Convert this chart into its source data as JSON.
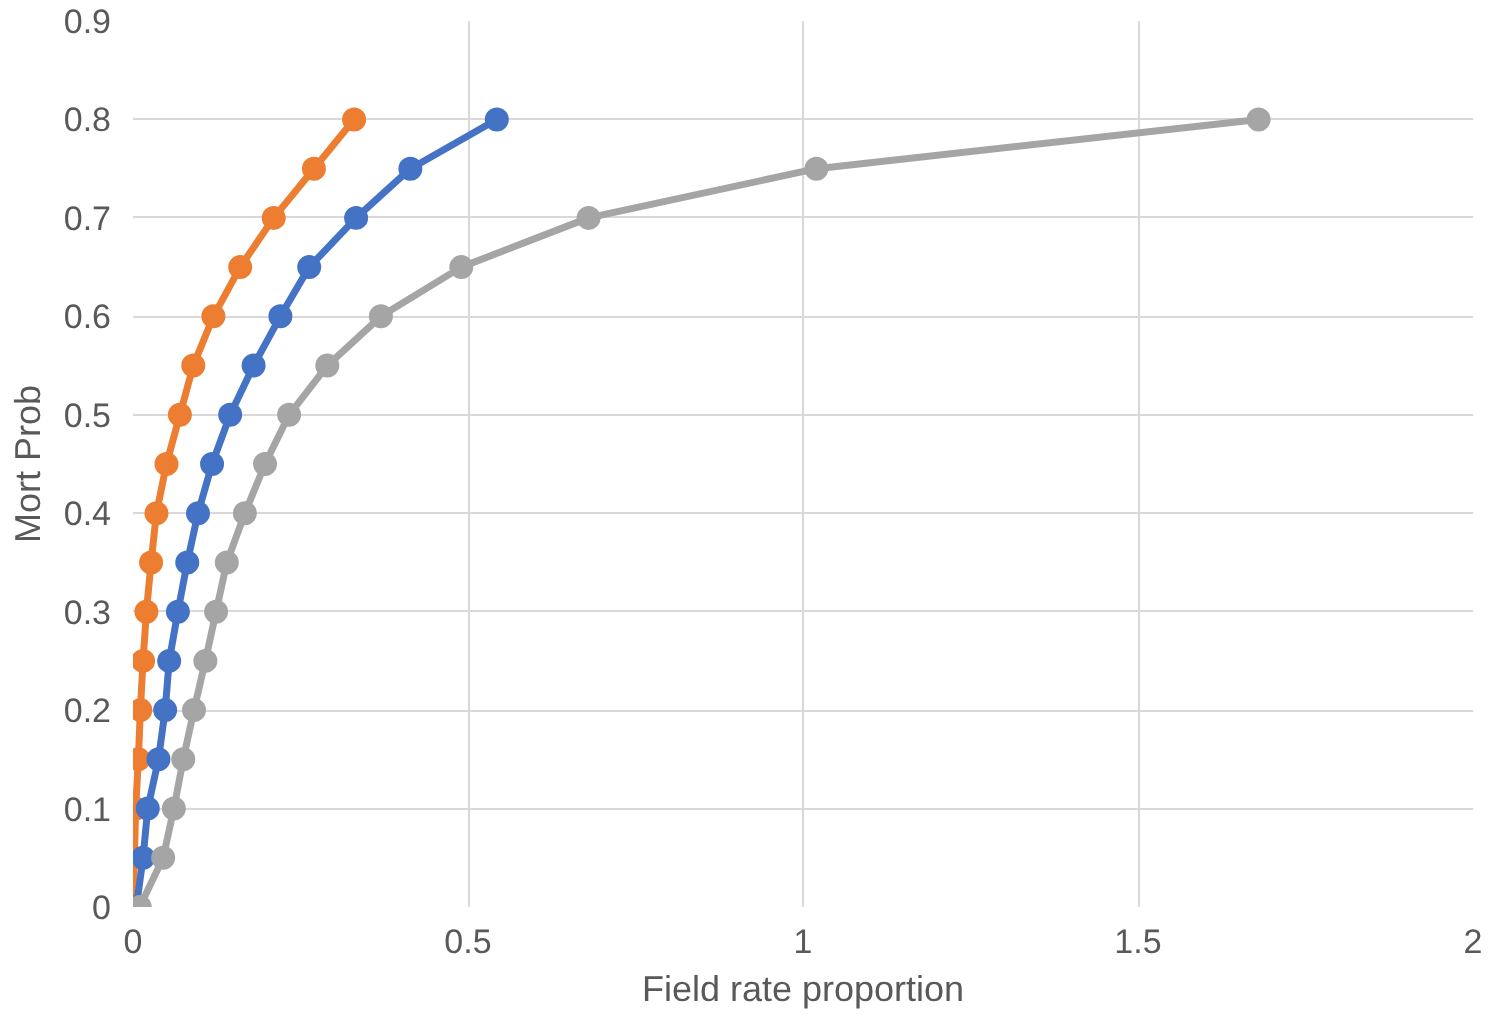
{
  "chart_data": {
    "type": "line",
    "xlabel": "Field rate proportion",
    "ylabel": "Mort Prob",
    "xlim": [
      0,
      2
    ],
    "xticks": [
      0,
      0.5,
      1,
      1.5,
      2
    ],
    "ylim": [
      0,
      0.9
    ],
    "yticks": [
      0,
      0.1,
      0.2,
      0.3,
      0.4,
      0.5,
      0.6,
      0.7,
      0.8,
      0.9
    ],
    "grid": true,
    "marker": "circle",
    "line_style": "solid",
    "series": [
      {
        "color": "#ed7d31",
        "x": [
          0,
          0.002,
          0.004,
          0.008,
          0.011,
          0.015,
          0.02,
          0.027,
          0.035,
          0.05,
          0.07,
          0.09,
          0.12,
          0.16,
          0.21,
          0.27,
          0.33
        ],
        "values": [
          0,
          0.05,
          0.1,
          0.15,
          0.2,
          0.25,
          0.3,
          0.35,
          0.4,
          0.45,
          0.5,
          0.55,
          0.6,
          0.65,
          0.7,
          0.75,
          0.8
        ]
      },
      {
        "color": "#4472c4",
        "x": [
          0.005,
          0.015,
          0.022,
          0.038,
          0.048,
          0.054,
          0.067,
          0.081,
          0.097,
          0.118,
          0.145,
          0.18,
          0.22,
          0.263,
          0.333,
          0.414,
          0.543
        ],
        "values": [
          0,
          0.05,
          0.1,
          0.15,
          0.2,
          0.25,
          0.3,
          0.35,
          0.4,
          0.45,
          0.5,
          0.55,
          0.6,
          0.65,
          0.7,
          0.75,
          0.8
        ]
      },
      {
        "color": "#a5a5a5",
        "x": [
          0.01,
          0.045,
          0.061,
          0.075,
          0.091,
          0.108,
          0.124,
          0.14,
          0.167,
          0.197,
          0.233,
          0.29,
          0.37,
          0.49,
          0.68,
          1.02,
          1.68
        ],
        "values": [
          0,
          0.05,
          0.1,
          0.15,
          0.2,
          0.25,
          0.3,
          0.35,
          0.4,
          0.45,
          0.5,
          0.55,
          0.6,
          0.65,
          0.7,
          0.75,
          0.8
        ]
      }
    ]
  }
}
